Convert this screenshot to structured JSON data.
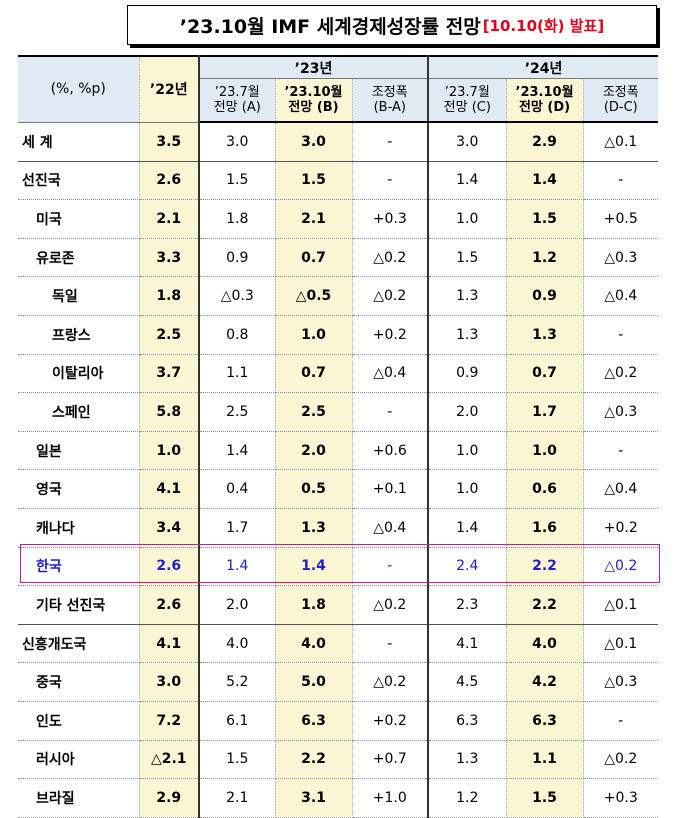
{
  "title": {
    "main": "’23.10월 IMF 세계경제성장률 전망",
    "release": "[10.10(화) 발표]"
  },
  "header": {
    "unit": "(%, %p)",
    "y22": "’22년",
    "y23": "’23년",
    "y24": "’24년",
    "a1": "’23.7월",
    "a2": "전망 (A)",
    "b1": "’23.10월",
    "b2": "전망 (B)",
    "ba1": "조정폭",
    "ba2": "(B-A)",
    "c1": "’23.7월",
    "c2": "전망 (C)",
    "d1": "’23.10월",
    "d2": "전망 (D)",
    "dc1": "조정폭",
    "dc2": "(D-C)"
  },
  "rows": [
    {
      "name": "세   계",
      "v22": "3.5",
      "a": "3.0",
      "b": "3.0",
      "ba": "-",
      "c": "3.0",
      "d": "2.9",
      "dc": "△0.1"
    },
    {
      "name": "선진국",
      "v22": "2.6",
      "a": "1.5",
      "b": "1.5",
      "ba": "-",
      "c": "1.4",
      "d": "1.4",
      "dc": "-"
    },
    {
      "name": "미국",
      "v22": "2.1",
      "a": "1.8",
      "b": "2.1",
      "ba": "+0.3",
      "c": "1.0",
      "d": "1.5",
      "dc": "+0.5"
    },
    {
      "name": "유로존",
      "v22": "3.3",
      "a": "0.9",
      "b": "0.7",
      "ba": "△0.2",
      "c": "1.5",
      "d": "1.2",
      "dc": "△0.3"
    },
    {
      "name": "독일",
      "v22": "1.8",
      "a": "△0.3",
      "b": "△0.5",
      "ba": "△0.2",
      "c": "1.3",
      "d": "0.9",
      "dc": "△0.4"
    },
    {
      "name": "프랑스",
      "v22": "2.5",
      "a": "0.8",
      "b": "1.0",
      "ba": "+0.2",
      "c": "1.3",
      "d": "1.3",
      "dc": "-"
    },
    {
      "name": "이탈리아",
      "v22": "3.7",
      "a": "1.1",
      "b": "0.7",
      "ba": "△0.4",
      "c": "0.9",
      "d": "0.7",
      "dc": "△0.2"
    },
    {
      "name": "스페인",
      "v22": "5.8",
      "a": "2.5",
      "b": "2.5",
      "ba": "-",
      "c": "2.0",
      "d": "1.7",
      "dc": "△0.3"
    },
    {
      "name": "일본",
      "v22": "1.0",
      "a": "1.4",
      "b": "2.0",
      "ba": "+0.6",
      "c": "1.0",
      "d": "1.0",
      "dc": "-"
    },
    {
      "name": "영국",
      "v22": "4.1",
      "a": "0.4",
      "b": "0.5",
      "ba": "+0.1",
      "c": "1.0",
      "d": "0.6",
      "dc": "△0.4"
    },
    {
      "name": "캐나다",
      "v22": "3.4",
      "a": "1.7",
      "b": "1.3",
      "ba": "△0.4",
      "c": "1.4",
      "d": "1.6",
      "dc": "+0.2"
    },
    {
      "name": "한국",
      "v22": "2.6",
      "a": "1.4",
      "b": "1.4",
      "ba": "-",
      "c": "2.4",
      "d": "2.2",
      "dc": "△0.2"
    },
    {
      "name": "기타 선진국",
      "v22": "2.6",
      "a": "2.0",
      "b": "1.8",
      "ba": "△0.2",
      "c": "2.3",
      "d": "2.2",
      "dc": "△0.1"
    },
    {
      "name": "신흥개도국",
      "v22": "4.1",
      "a": "4.0",
      "b": "4.0",
      "ba": "-",
      "c": "4.1",
      "d": "4.0",
      "dc": "△0.1"
    },
    {
      "name": "중국",
      "v22": "3.0",
      "a": "5.2",
      "b": "5.0",
      "ba": "△0.2",
      "c": "4.5",
      "d": "4.2",
      "dc": "△0.3"
    },
    {
      "name": "인도",
      "v22": "7.2",
      "a": "6.1",
      "b": "6.3",
      "ba": "+0.2",
      "c": "6.3",
      "d": "6.3",
      "dc": "-"
    },
    {
      "name": "러시아",
      "v22": "△2.1",
      "a": "1.5",
      "b": "2.2",
      "ba": "+0.7",
      "c": "1.3",
      "d": "1.1",
      "dc": "△0.2"
    },
    {
      "name": "브라질",
      "v22": "2.9",
      "a": "2.1",
      "b": "3.1",
      "ba": "+1.0",
      "c": "1.2",
      "d": "1.5",
      "dc": "+0.3"
    }
  ]
}
